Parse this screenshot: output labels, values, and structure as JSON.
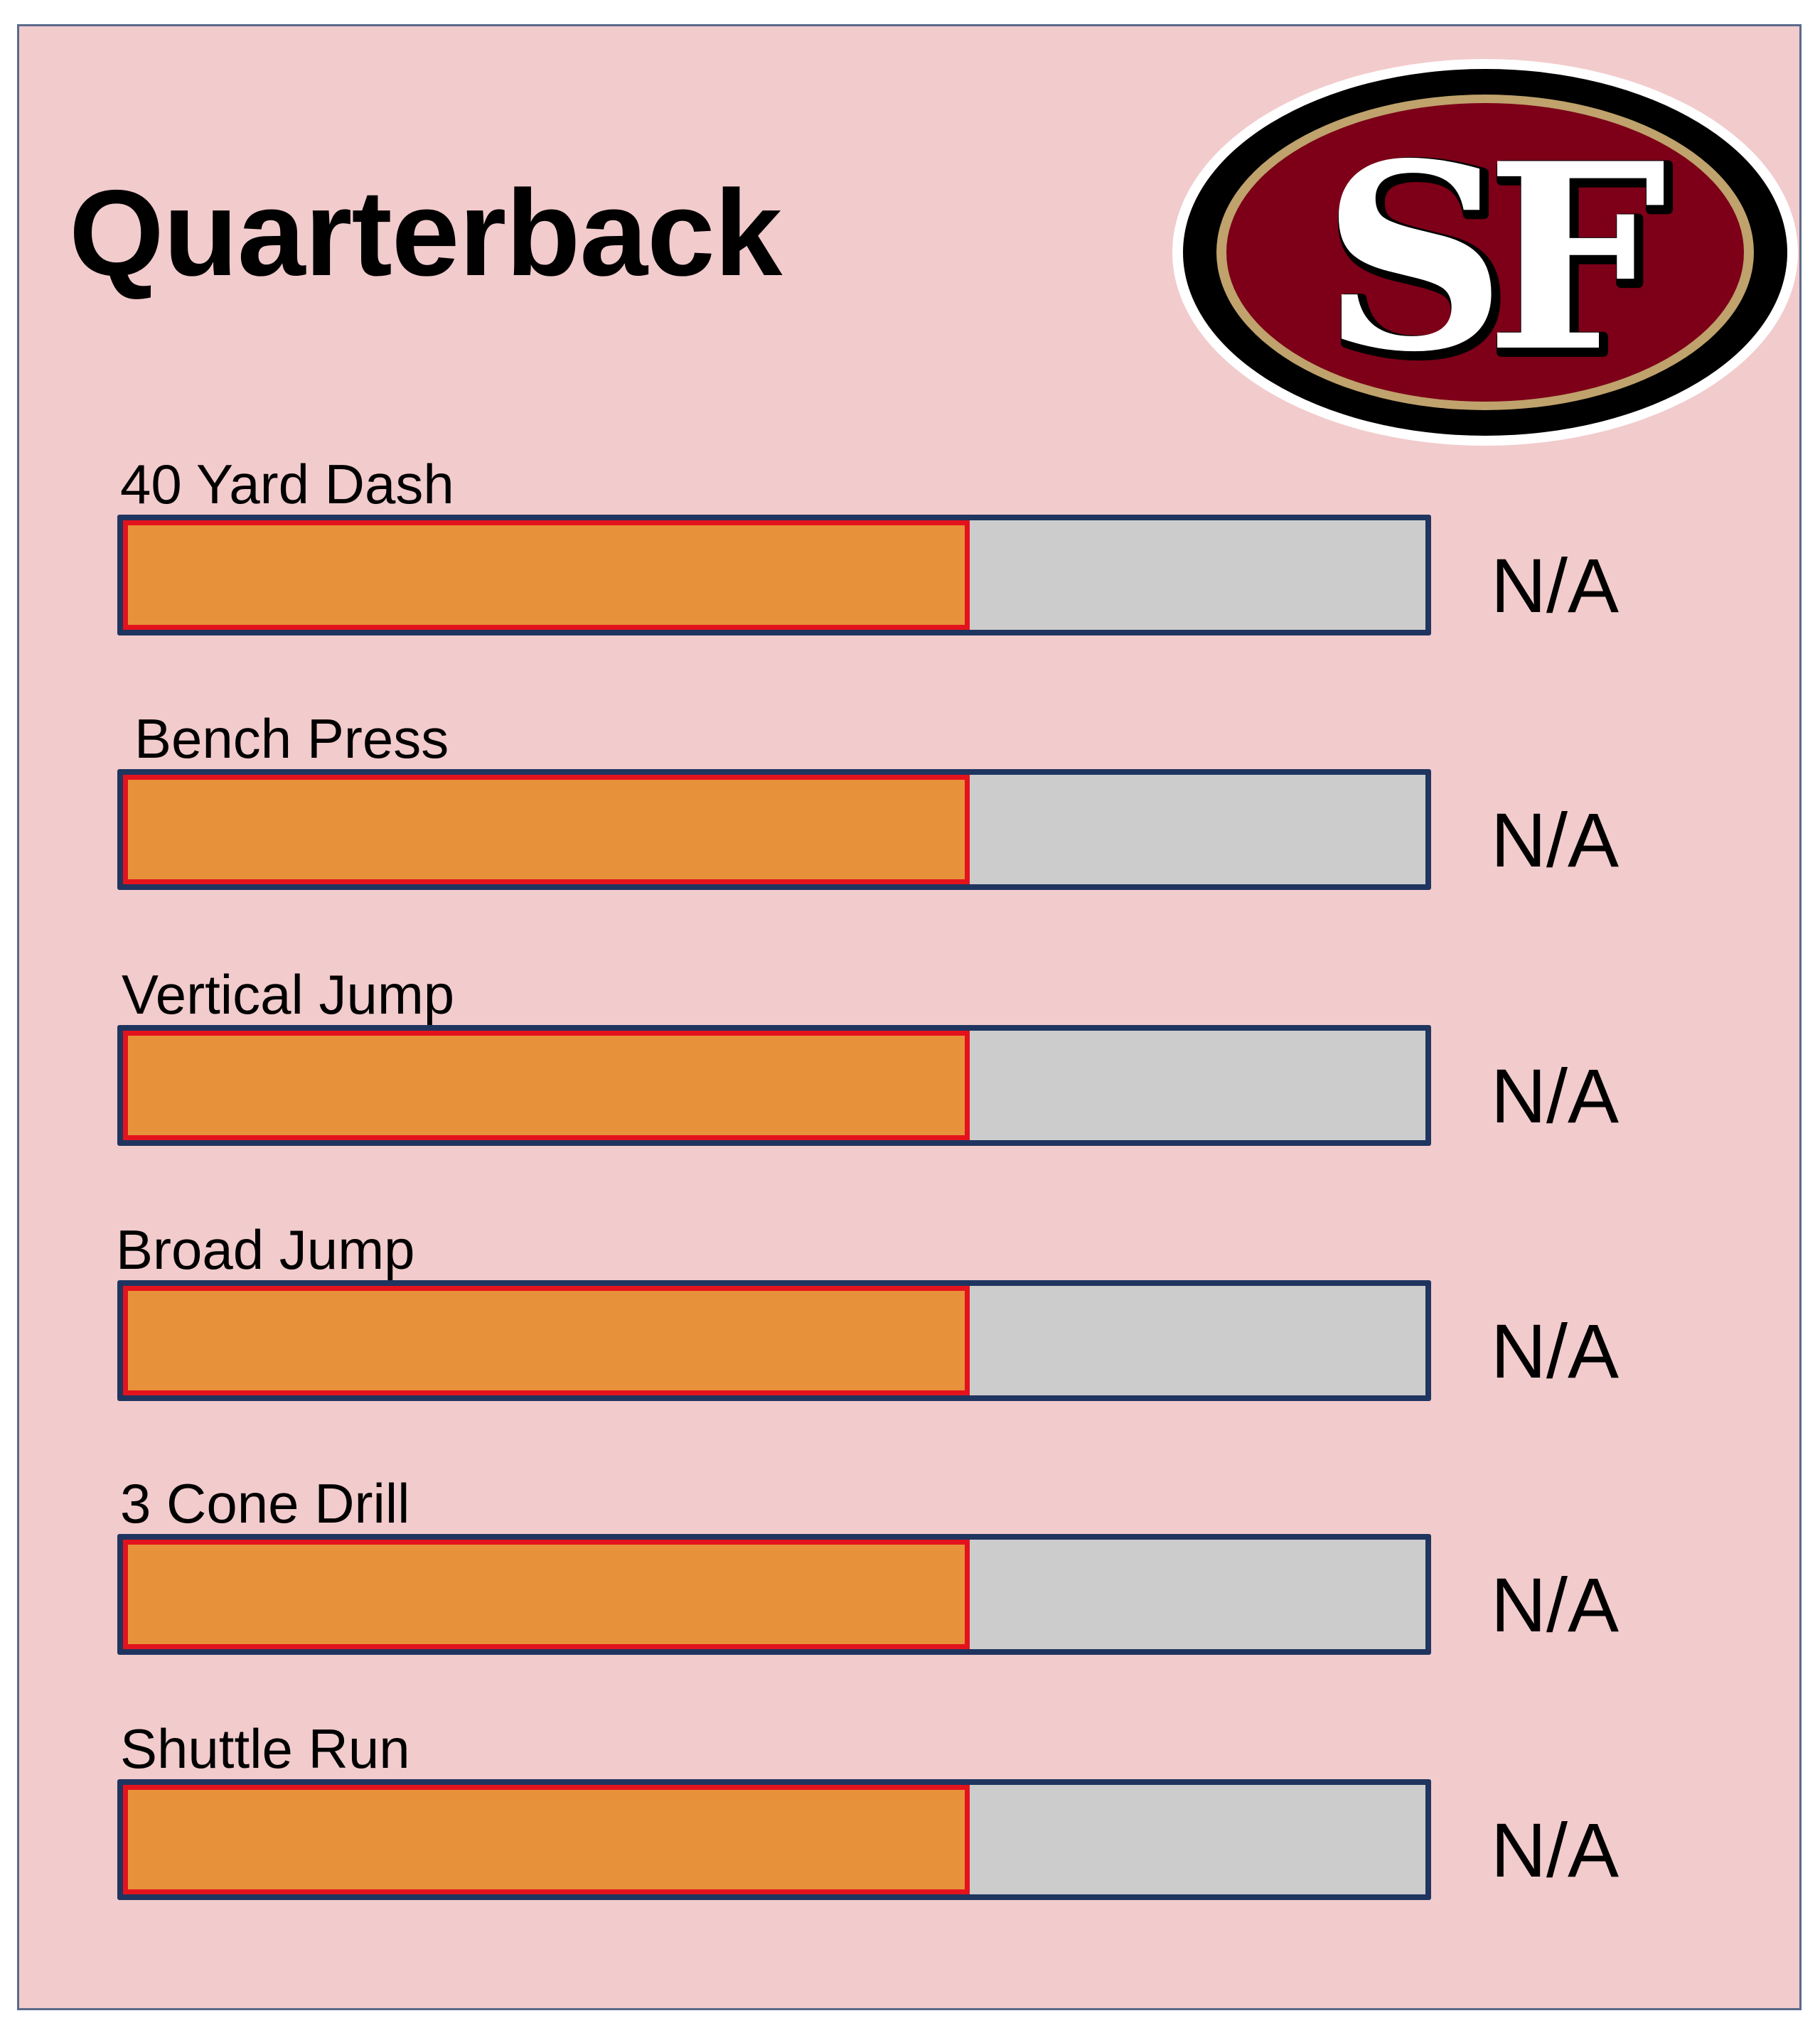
{
  "page_title": "Quarterback",
  "logo": {
    "icon": "sf-49ers-logo",
    "text": "SF",
    "colors": {
      "outer": "#000000",
      "ring": "#bfa26c",
      "field": "#7d0018",
      "letters": "#ffffff"
    }
  },
  "colors": {
    "background": "#f2cbcc",
    "track": "#cccccc",
    "track_border": "#1f3560",
    "fill": "#e8913b",
    "fill_border": "#e3131d"
  },
  "stats": [
    {
      "label": "40 Yard Dash",
      "value": "N/A",
      "fill_fraction": 0.65
    },
    {
      "label": "Bench Press",
      "value": "N/A",
      "fill_fraction": 0.65
    },
    {
      "label": "Vertical Jump",
      "value": "N/A",
      "fill_fraction": 0.65
    },
    {
      "label": "Broad Jump",
      "value": "N/A",
      "fill_fraction": 0.65
    },
    {
      "label": "3 Cone Drill",
      "value": "N/A",
      "fill_fraction": 0.65
    },
    {
      "label": "Shuttle Run",
      "value": "N/A",
      "fill_fraction": 0.65
    }
  ]
}
